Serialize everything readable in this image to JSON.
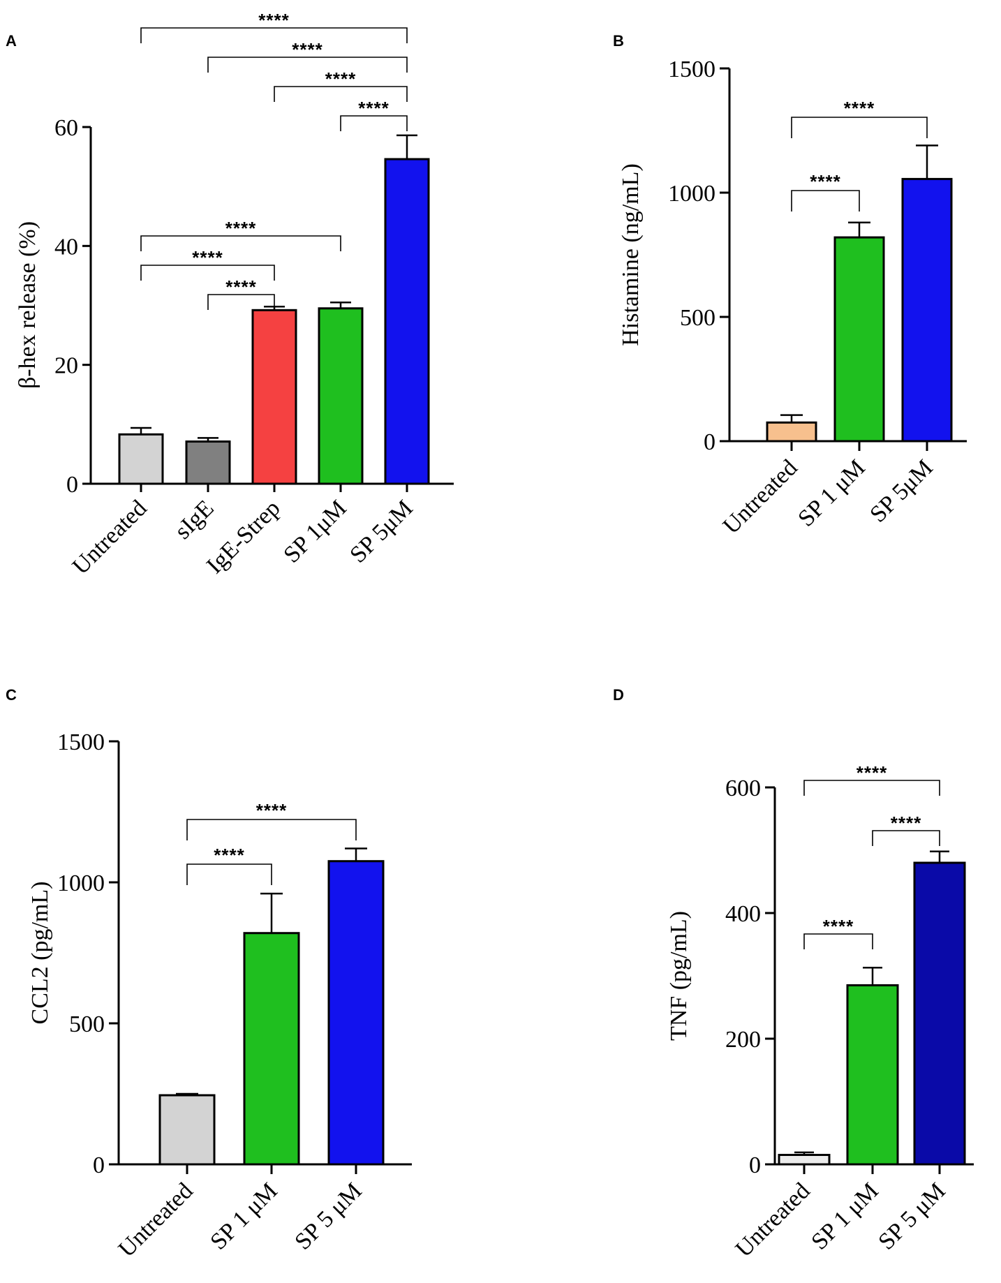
{
  "chart_data": [
    {
      "panel": "A",
      "type": "bar",
      "categories": [
        "Untreated",
        "sIgE",
        "IgE-Strep",
        "SP 1μM",
        "SP 5μM"
      ],
      "values": [
        8.3,
        7.1,
        29.2,
        29.5,
        54.6
      ],
      "errors": [
        1.1,
        0.6,
        0.6,
        1.0,
        4.0
      ],
      "colors": [
        "#d3d3d3",
        "#808080",
        "#f54141",
        "#1fbf1f",
        "#1212ee"
      ],
      "ylabel": "β-hex release (%)",
      "ylim": [
        0,
        60
      ],
      "yticks": [
        0,
        20,
        40,
        60
      ],
      "significance": [
        {
          "from": 0,
          "to": 4,
          "label": "****"
        },
        {
          "from": 1,
          "to": 4,
          "label": "****"
        },
        {
          "from": 2,
          "to": 4,
          "label": "****"
        },
        {
          "from": 3,
          "to": 4,
          "label": "****"
        },
        {
          "from": 0,
          "to": 3,
          "label": "****"
        },
        {
          "from": 0,
          "to": 2,
          "label": "****"
        },
        {
          "from": 1,
          "to": 2,
          "label": "****"
        }
      ]
    },
    {
      "panel": "B",
      "type": "bar",
      "categories": [
        "Untreated",
        "SP 1 μM",
        "SP 5μM"
      ],
      "values": [
        75,
        820,
        1055
      ],
      "errors": [
        30,
        60,
        135
      ],
      "colors": [
        "#f7c08e",
        "#1fbf1f",
        "#1212ee"
      ],
      "ylabel": "Histamine (ng/mL)",
      "ylim": [
        0,
        1500
      ],
      "yticks": [
        0,
        500,
        1000,
        1500
      ],
      "significance": [
        {
          "from": 0,
          "to": 2,
          "label": "****"
        },
        {
          "from": 0,
          "to": 1,
          "label": "****"
        }
      ]
    },
    {
      "panel": "C",
      "type": "bar",
      "categories": [
        "Untreated",
        "SP 1 μM",
        "SP 5 μM"
      ],
      "values": [
        245,
        820,
        1075
      ],
      "errors": [
        5,
        140,
        45
      ],
      "colors": [
        "#d3d3d3",
        "#1fbf1f",
        "#1212ee"
      ],
      "ylabel": "CCL2 (pg/mL)",
      "ylim": [
        0,
        1500
      ],
      "yticks": [
        0,
        500,
        1000,
        1500
      ],
      "significance": [
        {
          "from": 0,
          "to": 2,
          "label": "****"
        },
        {
          "from": 0,
          "to": 1,
          "label": "****"
        }
      ]
    },
    {
      "panel": "D",
      "type": "bar",
      "categories": [
        "Untreated",
        "SP 1 μM",
        "SP 5 μM"
      ],
      "values": [
        15,
        285,
        480
      ],
      "errors": [
        4,
        28,
        18
      ],
      "colors": [
        "#ececec",
        "#1fbf1f",
        "#0a0aa8"
      ],
      "ylabel": "TNF (pg/mL)",
      "ylim": [
        0,
        600
      ],
      "yticks": [
        0,
        200,
        400,
        600
      ],
      "significance": [
        {
          "from": 0,
          "to": 2,
          "label": "****"
        },
        {
          "from": 1,
          "to": 2,
          "label": "****"
        },
        {
          "from": 0,
          "to": 1,
          "label": "****"
        }
      ]
    }
  ]
}
